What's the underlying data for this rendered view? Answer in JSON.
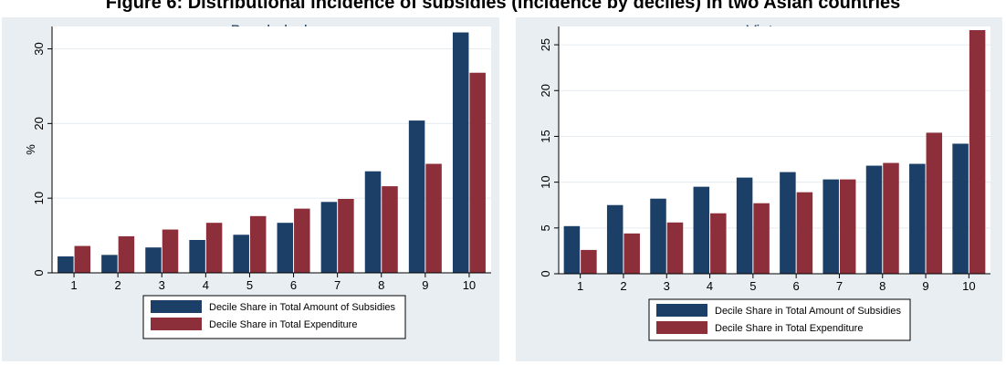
{
  "figure": {
    "title": "Figure 6: Distributional incidence of subsidies (incidence by deciles) in two Asian countries"
  },
  "colors": {
    "panel_background": "#e8eef2",
    "plot_background": "#ffffff",
    "series_subsidies": "#1b3f66",
    "series_expenditure": "#8c2f3a"
  },
  "chart_data": [
    {
      "type": "bar",
      "title": "Bangladesh",
      "ylabel": "%",
      "xlabel": "",
      "categories": [
        "1",
        "2",
        "3",
        "4",
        "5",
        "6",
        "7",
        "8",
        "9",
        "10"
      ],
      "ylim": [
        0,
        33
      ],
      "yticks": [
        0,
        10,
        20,
        30
      ],
      "grid": true,
      "legend_position": "bottom",
      "series": [
        {
          "name": "Decile Share in Total Amount of Subsidies",
          "values": [
            2.2,
            2.4,
            3.4,
            4.4,
            5.1,
            6.7,
            9.5,
            13.6,
            20.4,
            32.2
          ]
        },
        {
          "name": "Decile Share in Total Expenditure",
          "values": [
            3.6,
            4.9,
            5.8,
            6.7,
            7.6,
            8.6,
            9.9,
            11.6,
            14.6,
            26.8
          ]
        }
      ]
    },
    {
      "type": "bar",
      "title": "Vietnam",
      "ylabel": "%",
      "xlabel": "",
      "categories": [
        "1",
        "2",
        "3",
        "4",
        "5",
        "6",
        "7",
        "8",
        "9",
        "10"
      ],
      "ylim": [
        0,
        27
      ],
      "yticks": [
        0,
        5,
        10,
        15,
        20,
        25
      ],
      "grid": true,
      "legend_position": "bottom",
      "series": [
        {
          "name": "Decile Share in Total Amount of Subsidies",
          "values": [
            5.2,
            7.5,
            8.2,
            9.5,
            10.5,
            11.1,
            10.3,
            11.8,
            12.0,
            14.2
          ]
        },
        {
          "name": "Decile Share in Total Expenditure",
          "values": [
            2.6,
            4.4,
            5.6,
            6.6,
            7.7,
            8.9,
            10.3,
            12.1,
            15.4,
            26.6
          ]
        }
      ]
    }
  ]
}
